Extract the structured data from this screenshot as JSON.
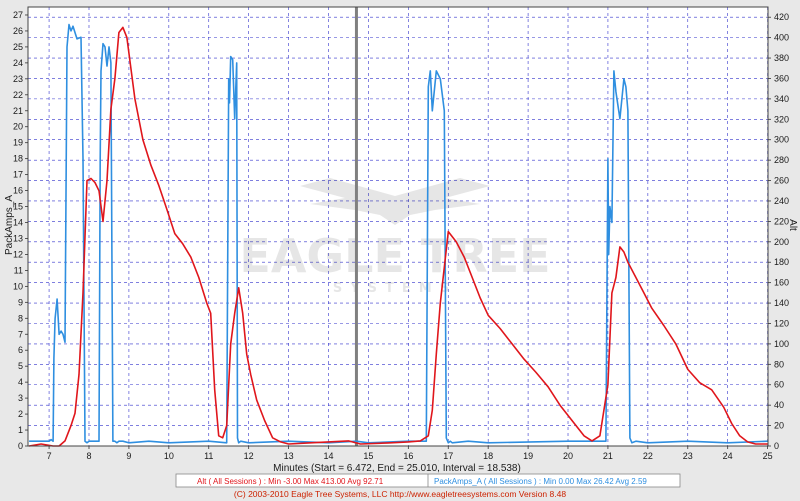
{
  "colors": {
    "alt": "#e0161c",
    "amps": "#2f8fe0",
    "grid": "#3333cc",
    "plot_bg": "#ffffff",
    "frame_bg": "#e8e8e8",
    "session_break": "#808080"
  },
  "watermark": {
    "brand": "EAGLE TREE",
    "sub": "SYSTEMS"
  },
  "legend": {
    "alt": "Alt  ( All Sessions ) : Min -3.00   Max 413.00   Avg 92.71",
    "amps": "PackAmps_A  ( All Sessions ) : Min 0.00   Max 26.42   Avg 2.59"
  },
  "footer": "(C) 2003-2010 Eagle Tree Systems, LLC     http://www.eagletreesystems.com     Version 8.48",
  "chart_data": {
    "type": "line",
    "xlabel": "Minutes (Start = 6.472,  End = 25.010,  Interval = 18.538)",
    "ylabel_left": "PackAmps_A",
    "ylabel_right": "Alt",
    "xlim": [
      6.472,
      25.01
    ],
    "ylim_left": [
      0,
      27.5
    ],
    "ylim_right": [
      0,
      430
    ],
    "x_ticks": [
      7,
      8,
      9,
      10,
      11,
      12,
      13,
      14,
      15,
      16,
      17,
      18,
      19,
      20,
      21,
      22,
      23,
      24,
      25
    ],
    "y_ticks_left": [
      0,
      1,
      2,
      3,
      4,
      5,
      6,
      7,
      8,
      9,
      10,
      11,
      12,
      13,
      14,
      15,
      16,
      17,
      18,
      19,
      20,
      21,
      22,
      23,
      24,
      25,
      26,
      27
    ],
    "y_ticks_right": [
      0,
      20,
      40,
      60,
      80,
      100,
      120,
      140,
      160,
      180,
      200,
      220,
      240,
      260,
      280,
      300,
      320,
      340,
      360,
      380,
      400,
      420
    ],
    "grid": true,
    "session_break_x": 14.7,
    "series": [
      {
        "name": "Alt",
        "axis": "right",
        "x": [
          6.5,
          6.8,
          7.1,
          7.25,
          7.4,
          7.55,
          7.65,
          7.75,
          7.85,
          7.95,
          8.05,
          8.15,
          8.25,
          8.35,
          8.45,
          8.55,
          8.65,
          8.75,
          8.85,
          8.95,
          9.05,
          9.15,
          9.35,
          9.55,
          9.75,
          9.95,
          10.15,
          10.35,
          10.55,
          10.75,
          10.95,
          11.05,
          11.15,
          11.25,
          11.35,
          11.45,
          11.55,
          11.65,
          11.75,
          11.85,
          11.95,
          12.05,
          12.2,
          12.4,
          12.6,
          12.8,
          13.0,
          13.5,
          14.0,
          14.5,
          14.8,
          15.5,
          16.0,
          16.3,
          16.5,
          16.6,
          16.7,
          16.8,
          16.9,
          17.0,
          17.2,
          17.4,
          17.6,
          17.8,
          18.0,
          18.3,
          18.6,
          18.9,
          19.2,
          19.5,
          19.8,
          20.1,
          20.4,
          20.6,
          20.8,
          21.0,
          21.1,
          21.2,
          21.3,
          21.4,
          21.5,
          21.7,
          21.9,
          22.1,
          22.4,
          22.7,
          23.0,
          23.3,
          23.6,
          23.9,
          24.1,
          24.3,
          24.5,
          24.7,
          25.0
        ],
        "y": [
          0,
          2,
          0,
          0,
          5,
          20,
          32,
          70,
          150,
          260,
          262,
          258,
          250,
          220,
          260,
          330,
          360,
          405,
          410,
          400,
          370,
          340,
          300,
          275,
          255,
          232,
          208,
          198,
          185,
          165,
          140,
          130,
          55,
          10,
          8,
          20,
          100,
          130,
          155,
          130,
          90,
          70,
          45,
          25,
          8,
          4,
          2,
          3,
          4,
          5,
          2,
          3,
          4,
          5,
          10,
          35,
          90,
          140,
          175,
          210,
          200,
          185,
          165,
          145,
          128,
          115,
          100,
          85,
          72,
          58,
          40,
          25,
          10,
          5,
          10,
          60,
          150,
          165,
          195,
          190,
          180,
          165,
          150,
          135,
          118,
          100,
          75,
          62,
          55,
          38,
          22,
          10,
          4,
          2,
          2
        ]
      },
      {
        "name": "PackAmps_A",
        "axis": "left",
        "x": [
          6.5,
          7.0,
          7.05,
          7.1,
          7.12,
          7.15,
          7.2,
          7.25,
          7.3,
          7.35,
          7.4,
          7.45,
          7.5,
          7.55,
          7.6,
          7.7,
          7.8,
          7.85,
          7.9,
          7.95,
          8.0,
          8.25,
          8.28,
          8.3,
          8.35,
          8.4,
          8.45,
          8.5,
          8.55,
          8.6,
          8.65,
          8.7,
          8.75,
          8.85,
          9.0,
          9.5,
          10.0,
          11.0,
          11.45,
          11.5,
          11.52,
          11.55,
          11.6,
          11.65,
          11.7,
          11.72,
          11.75,
          11.8,
          12.0,
          13.0,
          14.0,
          14.7,
          15.0,
          16.0,
          16.45,
          16.5,
          16.55,
          16.6,
          16.7,
          16.8,
          16.9,
          16.95,
          17.0,
          17.05,
          17.1,
          17.5,
          18.0,
          20.0,
          20.9,
          20.95,
          21.0,
          21.02,
          21.05,
          21.1,
          21.15,
          21.2,
          21.3,
          21.4,
          21.45,
          21.5,
          21.55,
          21.6,
          21.7,
          22.0,
          23.0,
          24.0,
          25.0
        ],
        "y": [
          0.3,
          0.3,
          0.4,
          0.3,
          5.5,
          8,
          9.2,
          7,
          7.2,
          7,
          6.5,
          25,
          26.4,
          26,
          26.3,
          25.5,
          25.6,
          18,
          0.3,
          0.2,
          0.3,
          0.3,
          18,
          23.5,
          25.2,
          25,
          23.8,
          25,
          24,
          0.3,
          0.3,
          0.2,
          0.3,
          0.3,
          0.2,
          0.3,
          0.2,
          0.3,
          0.2,
          23,
          21.5,
          24.4,
          24.2,
          20.5,
          24,
          0.5,
          0.2,
          0.3,
          0.2,
          0.3,
          0.2,
          0.3,
          0.2,
          0.3,
          0.3,
          22.5,
          23.5,
          21,
          23.5,
          23,
          21,
          0.5,
          0.2,
          0.3,
          0.2,
          0.3,
          0.2,
          0.3,
          0.3,
          0.3,
          18,
          12,
          15,
          14,
          23.5,
          22.2,
          20.5,
          23,
          22.5,
          21,
          0.5,
          0.2,
          0.3,
          0.2,
          0.3,
          0.2,
          0.3
        ]
      }
    ]
  }
}
